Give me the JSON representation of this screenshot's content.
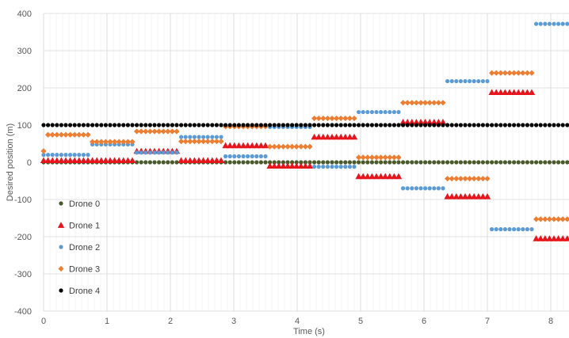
{
  "chart_data": {
    "type": "scatter",
    "xlabel": "Time (s)",
    "ylabel": "Desired position (m)",
    "xlim": [
      0,
      8.3
    ],
    "ylim": [
      -400,
      400
    ],
    "x_ticks": [
      "0",
      "1",
      "2",
      "3",
      "4",
      "5",
      "6",
      "7",
      "8"
    ],
    "y_ticks": [
      "400",
      "300",
      "200",
      "100",
      "0",
      "-100",
      "-200",
      "-300",
      "-400"
    ],
    "grid": true,
    "legend_position": "bottom-left",
    "sample_step": 0.07,
    "series": [
      {
        "name": "Drone 0",
        "marker": "circle",
        "color": "#4a5a2b",
        "segments": [
          {
            "t0": 0.0,
            "t1": 8.3,
            "y": 0
          }
        ]
      },
      {
        "name": "Drone 1",
        "marker": "triangle",
        "color": "#e8141c",
        "segments": [
          {
            "t0": 0.0,
            "t1": 1.4,
            "y": 5
          },
          {
            "t0": 1.47,
            "t1": 2.1,
            "y": 30
          },
          {
            "t0": 2.17,
            "t1": 2.8,
            "y": 5
          },
          {
            "t0": 2.87,
            "t1": 3.5,
            "y": 45
          },
          {
            "t0": 3.57,
            "t1": 4.2,
            "y": -10
          },
          {
            "t0": 4.27,
            "t1": 4.9,
            "y": 68
          },
          {
            "t0": 4.97,
            "t1": 5.6,
            "y": -38
          },
          {
            "t0": 5.67,
            "t1": 6.3,
            "y": 108
          },
          {
            "t0": 6.37,
            "t1": 7.0,
            "y": -92
          },
          {
            "t0": 7.07,
            "t1": 7.7,
            "y": 188
          },
          {
            "t0": 7.77,
            "t1": 8.3,
            "y": -205
          }
        ]
      },
      {
        "name": "Drone 2",
        "marker": "circle",
        "color": "#5b9bd5",
        "segments": [
          {
            "t0": 0.0,
            "t1": 0.7,
            "y": 20
          },
          {
            "t0": 0.77,
            "t1": 1.4,
            "y": 48
          },
          {
            "t0": 1.47,
            "t1": 2.1,
            "y": 26
          },
          {
            "t0": 2.17,
            "t1": 2.8,
            "y": 68
          },
          {
            "t0": 2.87,
            "t1": 3.5,
            "y": 16
          },
          {
            "t0": 3.57,
            "t1": 4.2,
            "y": 95
          },
          {
            "t0": 4.27,
            "t1": 4.9,
            "y": -12
          },
          {
            "t0": 4.97,
            "t1": 5.6,
            "y": 135
          },
          {
            "t0": 5.67,
            "t1": 6.3,
            "y": -70
          },
          {
            "t0": 6.37,
            "t1": 7.0,
            "y": 218
          },
          {
            "t0": 7.07,
            "t1": 7.7,
            "y": -180
          },
          {
            "t0": 7.77,
            "t1": 8.3,
            "y": 372
          }
        ]
      },
      {
        "name": "Drone 3",
        "marker": "diamond",
        "color": "#ed7d31",
        "segments": [
          {
            "t0": 0.0,
            "t1": 0.0,
            "y": 30
          },
          {
            "t0": 0.07,
            "t1": 0.7,
            "y": 74
          },
          {
            "t0": 0.77,
            "t1": 1.4,
            "y": 55
          },
          {
            "t0": 1.47,
            "t1": 2.1,
            "y": 83
          },
          {
            "t0": 2.17,
            "t1": 2.8,
            "y": 56
          },
          {
            "t0": 2.87,
            "t1": 3.5,
            "y": 96
          },
          {
            "t0": 3.57,
            "t1": 4.2,
            "y": 42
          },
          {
            "t0": 4.27,
            "t1": 4.9,
            "y": 118
          },
          {
            "t0": 4.97,
            "t1": 5.6,
            "y": 13
          },
          {
            "t0": 5.67,
            "t1": 6.3,
            "y": 160
          },
          {
            "t0": 6.37,
            "t1": 7.0,
            "y": -44
          },
          {
            "t0": 7.07,
            "t1": 7.7,
            "y": 240
          },
          {
            "t0": 7.77,
            "t1": 8.3,
            "y": -153
          }
        ]
      },
      {
        "name": "Drone 4",
        "marker": "circle",
        "color": "#000000",
        "segments": [
          {
            "t0": 0.0,
            "t1": 8.3,
            "y": 100
          }
        ]
      }
    ]
  }
}
